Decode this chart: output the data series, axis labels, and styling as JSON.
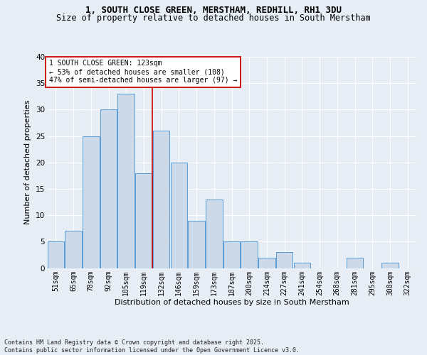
{
  "title": "1, SOUTH CLOSE GREEN, MERSTHAM, REDHILL, RH1 3DU",
  "subtitle": "Size of property relative to detached houses in South Merstham",
  "xlabel": "Distribution of detached houses by size in South Merstham",
  "ylabel": "Number of detached properties",
  "categories": [
    "51sqm",
    "65sqm",
    "78sqm",
    "92sqm",
    "105sqm",
    "119sqm",
    "132sqm",
    "146sqm",
    "159sqm",
    "173sqm",
    "187sqm",
    "200sqm",
    "214sqm",
    "227sqm",
    "241sqm",
    "254sqm",
    "268sqm",
    "281sqm",
    "295sqm",
    "308sqm",
    "322sqm"
  ],
  "values": [
    5,
    7,
    25,
    30,
    33,
    18,
    26,
    20,
    9,
    13,
    5,
    5,
    2,
    3,
    1,
    0,
    0,
    2,
    0,
    1,
    0
  ],
  "bar_color": "#ccd9e8",
  "bar_edge_color": "#5b9bd5",
  "vline_x_idx": 5.5,
  "vline_color": "#cc0000",
  "annotation_text": "1 SOUTH CLOSE GREEN: 123sqm\n← 53% of detached houses are smaller (108)\n47% of semi-detached houses are larger (97) →",
  "annotation_box_color": "#cc0000",
  "ylim": [
    0,
    40
  ],
  "yticks": [
    0,
    5,
    10,
    15,
    20,
    25,
    30,
    35,
    40
  ],
  "footnote": "Contains HM Land Registry data © Crown copyright and database right 2025.\nContains public sector information licensed under the Open Government Licence v3.0.",
  "background_color": "#e8eef5",
  "plot_background_color": "#e8eef5",
  "title_fontsize": 9,
  "subtitle_fontsize": 8.5,
  "axis_label_fontsize": 8,
  "tick_fontsize": 7,
  "annotation_fontsize": 7,
  "footnote_fontsize": 6
}
